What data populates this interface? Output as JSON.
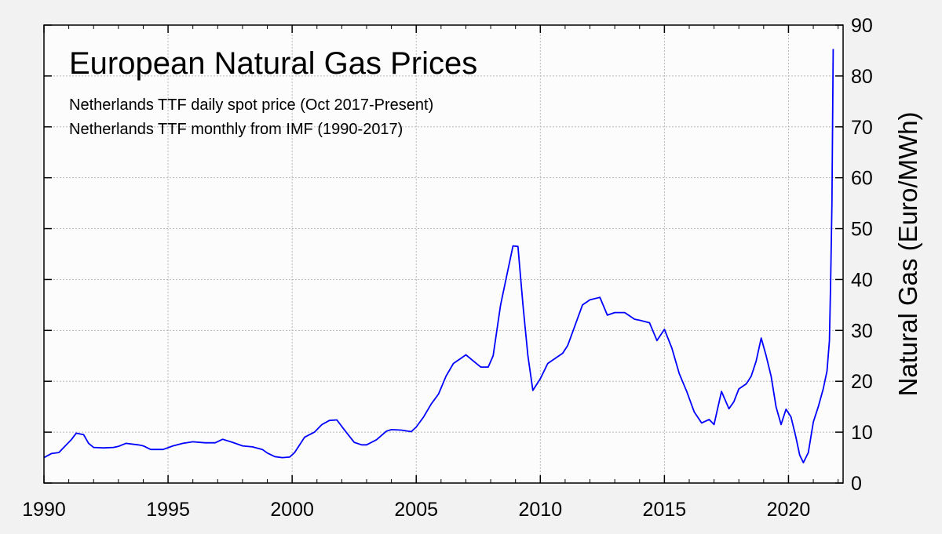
{
  "chart_data": {
    "type": "line",
    "title": "European Natural Gas Prices",
    "subtitle_lines": [
      "Netherlands TTF daily spot price (Oct 2017-Present)",
      "Netherlands TTF monthly from IMF (1990-2017)"
    ],
    "xlabel": "",
    "ylabel": "Natural Gas (Euro/MWh)",
    "xlim": [
      1990,
      2022.2
    ],
    "ylim": [
      0,
      90
    ],
    "x_ticks": [
      1990,
      1995,
      2000,
      2005,
      2010,
      2015,
      2020
    ],
    "y_ticks": [
      0,
      10,
      20,
      30,
      40,
      50,
      60,
      70,
      80,
      90
    ],
    "y_axis_side": "right",
    "grid": true,
    "line_color": "#0000ff",
    "series": [
      {
        "x": [
          1990.0,
          1990.3,
          1990.6,
          1990.9,
          1991.1,
          1991.3,
          1991.6,
          1991.8,
          1992.0,
          1992.4,
          1992.8,
          1993.0,
          1993.3,
          1993.8,
          1994.0,
          1994.3,
          1994.8,
          1995.2,
          1995.6,
          1996.0,
          1996.5,
          1996.9,
          1997.2,
          1997.6,
          1998.0,
          1998.4,
          1998.8,
          1999.0,
          1999.3,
          1999.6,
          1999.9,
          2000.1,
          2000.5,
          2000.9,
          2001.2,
          2001.5,
          2001.8,
          2002.1,
          2002.5,
          2002.8,
          2003.0,
          2003.4,
          2003.8,
          2004.0,
          2004.4,
          2004.8,
          2005.0,
          2005.3,
          2005.6,
          2005.9,
          2006.2,
          2006.5,
          2006.8,
          2007.0,
          2007.3,
          2007.6,
          2007.9,
          2008.1,
          2008.4,
          2008.7,
          2008.9,
          2009.1,
          2009.3,
          2009.5,
          2009.7,
          2010.0,
          2010.3,
          2010.6,
          2010.9,
          2011.1,
          2011.4,
          2011.7,
          2012.0,
          2012.4,
          2012.7,
          2013.0,
          2013.4,
          2013.8,
          2014.0,
          2014.4,
          2014.7,
          2015.0,
          2015.3,
          2015.6,
          2015.9,
          2016.2,
          2016.5,
          2016.8,
          2017.0,
          2017.3,
          2017.6,
          2017.8,
          2018.0,
          2018.3,
          2018.5,
          2018.7,
          2018.9,
          2019.1,
          2019.3,
          2019.5,
          2019.7,
          2019.9,
          2020.1,
          2020.3,
          2020.45,
          2020.6,
          2020.8,
          2021.0,
          2021.2,
          2021.4,
          2021.55,
          2021.65,
          2021.7,
          2021.75,
          2021.8
        ],
        "y": [
          5.0,
          5.8,
          6.0,
          7.5,
          8.5,
          9.8,
          9.5,
          7.8,
          7.0,
          6.9,
          7.0,
          7.2,
          7.8,
          7.5,
          7.3,
          6.6,
          6.6,
          7.3,
          7.8,
          8.1,
          7.9,
          7.9,
          8.6,
          8.0,
          7.3,
          7.1,
          6.6,
          5.9,
          5.2,
          5.0,
          5.1,
          6.0,
          9.0,
          10.0,
          11.5,
          12.3,
          12.4,
          10.5,
          8.0,
          7.5,
          7.5,
          8.5,
          10.2,
          10.5,
          10.4,
          10.1,
          11.0,
          13.0,
          15.5,
          17.5,
          21.0,
          23.5,
          24.5,
          25.2,
          24.0,
          22.8,
          22.8,
          25.0,
          35.0,
          42.0,
          46.6,
          46.5,
          35.0,
          25.0,
          18.2,
          20.5,
          23.5,
          24.5,
          25.5,
          27.0,
          31.0,
          35.0,
          36.0,
          36.5,
          33.0,
          33.5,
          33.5,
          32.2,
          32.0,
          31.5,
          28.0,
          30.2,
          26.5,
          21.5,
          18.0,
          14.0,
          11.8,
          12.5,
          11.5,
          18.0,
          14.6,
          16.0,
          18.5,
          19.5,
          21.0,
          24.0,
          28.5,
          25.0,
          21.0,
          15.0,
          11.5,
          14.5,
          13.0,
          9.0,
          5.5,
          4.0,
          6.0,
          12.0,
          15.0,
          18.5,
          22.0,
          28.0,
          40.0,
          55.0,
          85.3
        ]
      }
    ]
  }
}
